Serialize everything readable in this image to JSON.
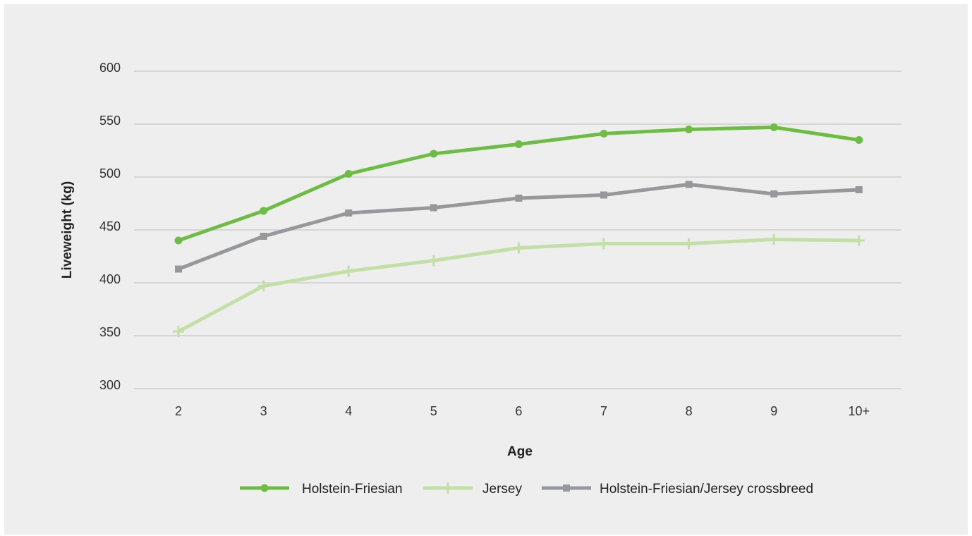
{
  "chart_data": {
    "type": "line",
    "title": "",
    "xlabel": "Age",
    "ylabel": "Liveweight (kg)",
    "categories": [
      "2",
      "3",
      "4",
      "5",
      "6",
      "7",
      "8",
      "9",
      "10+"
    ],
    "ylim": [
      300,
      600
    ],
    "yticks": [
      300,
      350,
      400,
      450,
      500,
      550,
      600
    ],
    "grid": "horizontal",
    "legend_position": "bottom",
    "series": [
      {
        "name": "Holstein-Friesian",
        "values": [
          440,
          468,
          503,
          522,
          531,
          541,
          545,
          547,
          535
        ],
        "color": "#6dbd45",
        "marker": "circle"
      },
      {
        "name": "Jersey",
        "values": [
          354,
          397,
          411,
          421,
          433,
          437,
          437,
          441,
          440
        ],
        "color": "#c2e0a6",
        "marker": "plus"
      },
      {
        "name": "Holstein-Friesian/Jersey crossbreed",
        "values": [
          413,
          444,
          466,
          471,
          480,
          483,
          493,
          484,
          488
        ],
        "color": "#97989b",
        "marker": "square"
      }
    ]
  }
}
